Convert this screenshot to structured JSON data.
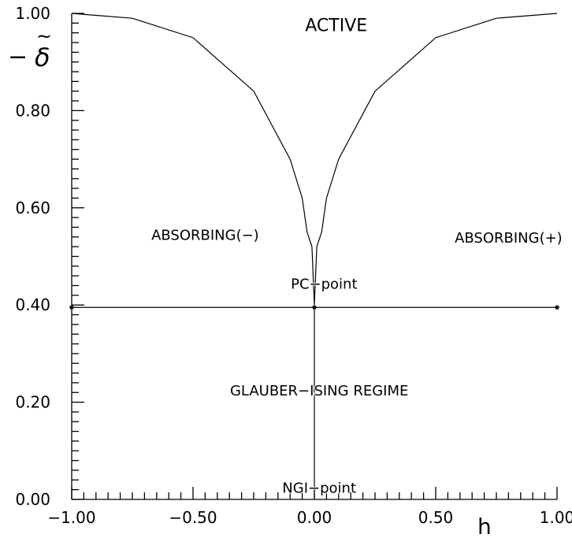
{
  "chart_data": {
    "type": "line",
    "ylabel_symbol": "δ",
    "ylabel_prefix": "−",
    "ylabel_accent": "~",
    "xlabel": "h",
    "xlim": [
      -1.0,
      1.0
    ],
    "ylim": [
      0.0,
      1.0
    ],
    "x_major_ticks": [
      -1.0,
      -0.5,
      0.0,
      0.5,
      1.0
    ],
    "x_tick_labels": [
      "−1.00",
      "−0.50",
      "0.00",
      "0.50",
      "1.00"
    ],
    "y_major_ticks": [
      0.0,
      0.2,
      0.4,
      0.6,
      0.8,
      1.0
    ],
    "y_tick_labels": [
      "0.00",
      "0.20",
      "0.40",
      "0.60",
      "0.80",
      "1.00"
    ],
    "grid": false,
    "phase_boundary": {
      "x": [
        -1.0,
        -0.75,
        -0.5,
        -0.25,
        -0.1,
        -0.05,
        -0.03,
        -0.01,
        0.0,
        0.01,
        0.03,
        0.05,
        0.1,
        0.25,
        0.5,
        0.75,
        1.0
      ],
      "y": [
        1.0,
        0.99,
        0.95,
        0.84,
        0.7,
        0.62,
        0.55,
        0.52,
        0.4,
        0.52,
        0.55,
        0.62,
        0.7,
        0.84,
        0.95,
        0.99,
        1.0
      ]
    },
    "horizontal_line": {
      "y": 0.395,
      "x": [
        -1.0,
        1.0
      ]
    },
    "vertical_line": {
      "x": 0.0,
      "y": [
        0.0,
        0.395
      ]
    },
    "marked_points": [
      {
        "x": -1.0,
        "y": 0.395
      },
      {
        "x": 0.0,
        "y": 0.395
      },
      {
        "x": 1.0,
        "y": 0.395
      }
    ],
    "annotations": [
      {
        "text": "ACTIVE",
        "x": 0.09,
        "y": 0.975
      },
      {
        "text": "ABSORBING(−)",
        "x": -0.45,
        "y": 0.545
      },
      {
        "text": "ABSORBING(+)",
        "x": 0.8,
        "y": 0.54
      },
      {
        "text": "PC−point",
        "x": 0.04,
        "y": 0.445
      },
      {
        "text": "GLAUBER−ISING  REGIME",
        "x": 0.02,
        "y": 0.225
      },
      {
        "text": "NGI−point",
        "x": 0.02,
        "y": 0.025
      }
    ]
  }
}
